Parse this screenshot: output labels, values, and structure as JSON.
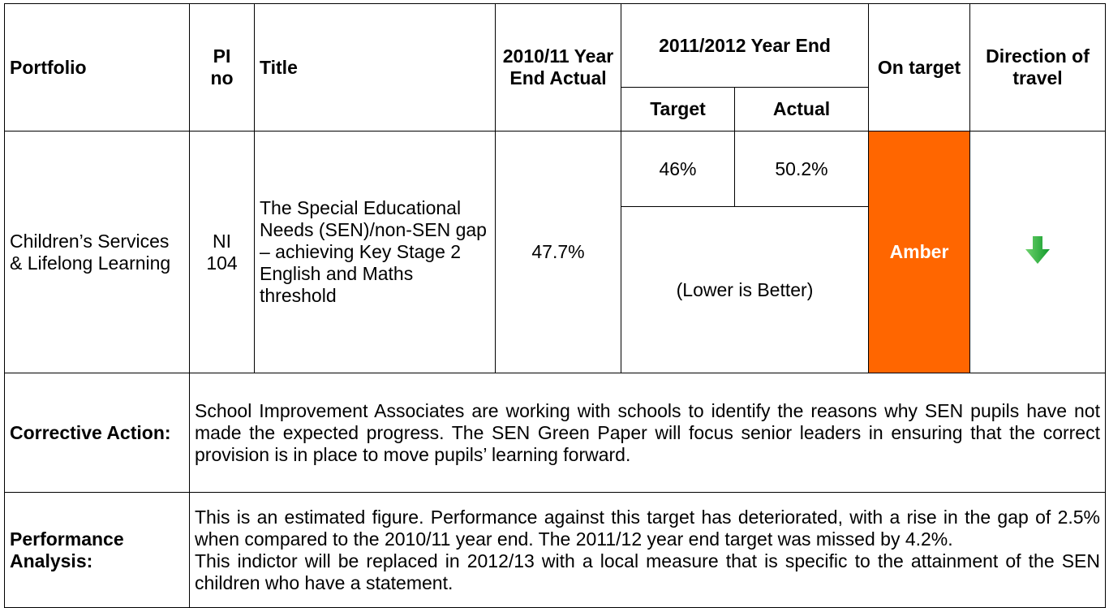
{
  "header": {
    "portfolio": "Portfolio",
    "pi_no": "PI no",
    "title": "Title",
    "prev_year": "2010/11 Year End Actual",
    "year_group": "2011/2012 Year End",
    "target": "Target",
    "actual": "Actual",
    "on_target": "On target",
    "direction": "Direction of travel"
  },
  "row": {
    "portfolio": "Children’s Services & Lifelong Learning",
    "pi_no": "NI 104",
    "title": "The Special Educational Needs (SEN)/non-SEN gap – achieving Key Stage 2 English and Maths threshold",
    "prev_year_actual": "47.7%",
    "target": "46%",
    "actual": "50.2%",
    "note": "(Lower is Better)",
    "on_target": "Amber"
  },
  "corrective_action": {
    "label": "Corrective Action:",
    "text": "School Improvement Associates are working with schools to identify the reasons why SEN pupils have not made the expected progress. The SEN Green Paper will focus senior leaders in ensuring that the correct provision is in place to move pupils’ learning forward."
  },
  "performance_analysis": {
    "label": "Performance Analysis:",
    "paragraphs": [
      "This is an estimated figure. Performance against this target has deteriorated, with a rise in the gap of 2.5% when compared to the 2010/11 year end. The 2011/12 year end target was missed by 4.2%.",
      "This indictor will be replaced in 2012/13 with a local measure that is specific to the attainment of the SEN children who have a statement."
    ]
  }
}
